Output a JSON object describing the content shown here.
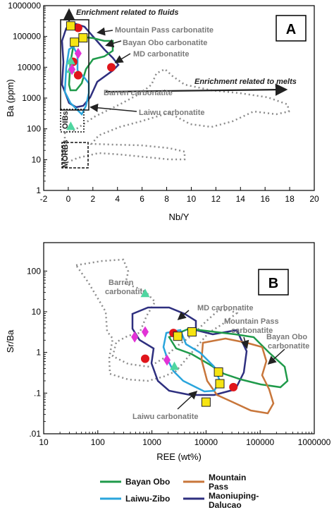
{
  "colors": {
    "bayan_obo": "#1f9a4a",
    "laiwu_zibo": "#2aa5dc",
    "mountain_pass": "#c8763a",
    "maoniuping": "#2e2f7f",
    "barren": "#8c8c8c",
    "md": "#e0151b",
    "mountain_pass_marker": "#f6e412",
    "laiwu_marker": "#4fd6a0",
    "bayan_marker": "#e233d6"
  },
  "chart_data": [
    {
      "panel": "A",
      "type": "scatter",
      "xlabel": "Nb/Y",
      "ylabel": "Ba (ppm)",
      "xlim": [
        -2,
        20
      ],
      "ylim": [
        1,
        1000000
      ],
      "yscale": "log",
      "x_ticks": [
        "-2",
        "0",
        "2",
        "4",
        "6",
        "8",
        "10",
        "12",
        "14",
        "16",
        "18",
        "20"
      ],
      "y_ticks": [
        "1",
        "10",
        "100",
        "1000",
        "10000",
        "100000",
        "1000000"
      ],
      "annotations": {
        "fluids": "Enrichment related to fluids",
        "melts": "Enrichment related to melts",
        "mountain_pass": "Mountain Pass carbonatite",
        "bayan_obo": "Bayan Obo carbonatite",
        "md": "MD carbonatite",
        "barren": "Barren carbonatite",
        "laiwu": "Laiwu carbonatite",
        "oibs": "OIBs",
        "morbs": "MORBs"
      },
      "series": [
        {
          "key": "md",
          "marker": "circle",
          "points": [
            [
              0.8,
              190000
            ],
            [
              0.4,
              15000
            ],
            [
              0.8,
              5500
            ],
            [
              3.5,
              10000
            ]
          ]
        },
        {
          "key": "mountain_pass",
          "marker": "square",
          "points": [
            [
              0.2,
              220000
            ],
            [
              1.2,
              90000
            ],
            [
              0.5,
              65000
            ]
          ]
        },
        {
          "key": "laiwu",
          "marker": "triangle",
          "points": [
            [
              0.2,
              16000
            ],
            [
              0.2,
              8500
            ],
            [
              0.2,
              120
            ]
          ]
        },
        {
          "key": "bayan",
          "marker": "diamond",
          "points": [
            [
              0.8,
              28000
            ],
            [
              0.3,
              8500
            ]
          ]
        }
      ]
    },
    {
      "panel": "B",
      "type": "scatter",
      "xlabel": "REE (wt%)",
      "ylabel": "Sr/Ba",
      "xlim": [
        10,
        1000000
      ],
      "ylim": [
        0.01,
        500
      ],
      "xscale": "log",
      "yscale": "log",
      "x_ticks": [
        "10",
        "100",
        "1000",
        "10000",
        "100000",
        "1000000"
      ],
      "y_ticks": [
        ".01",
        ".1",
        "1",
        "10",
        "100"
      ],
      "annotations": {
        "barren": "Barren carbonatite",
        "md": "MD carbonatite",
        "mountain_pass": "Mountain Pass carbonatite",
        "bayan_obo": "Bayan Obo carbonatite",
        "laiwu": "Laiwu carbonatite"
      },
      "series": [
        {
          "key": "md",
          "marker": "circle",
          "points": [
            [
              2500,
              3
            ],
            [
              750,
              0.7
            ],
            [
              32000,
              0.14
            ]
          ]
        },
        {
          "key": "mountain_pass",
          "marker": "square",
          "points": [
            [
              5500,
              3.2
            ],
            [
              3000,
              2.5
            ],
            [
              17000,
              0.33
            ],
            [
              18000,
              0.17
            ],
            [
              10000,
              0.06
            ]
          ]
        },
        {
          "key": "laiwu",
          "marker": "triangle",
          "points": [
            [
              750,
              28
            ],
            [
              2600,
              0.45
            ]
          ]
        },
        {
          "key": "bayan",
          "marker": "diamond",
          "points": [
            [
              480,
              2.4
            ],
            [
              750,
              3.2
            ],
            [
              1900,
              0.65
            ]
          ]
        }
      ]
    }
  ],
  "legend": {
    "bayan_obo": "Bayan Obo",
    "laiwu_zibo": "Laiwu-Zibo",
    "mountain_pass": "Mountain Pass",
    "maoniuping": "Maoniuping-Dalucao"
  }
}
